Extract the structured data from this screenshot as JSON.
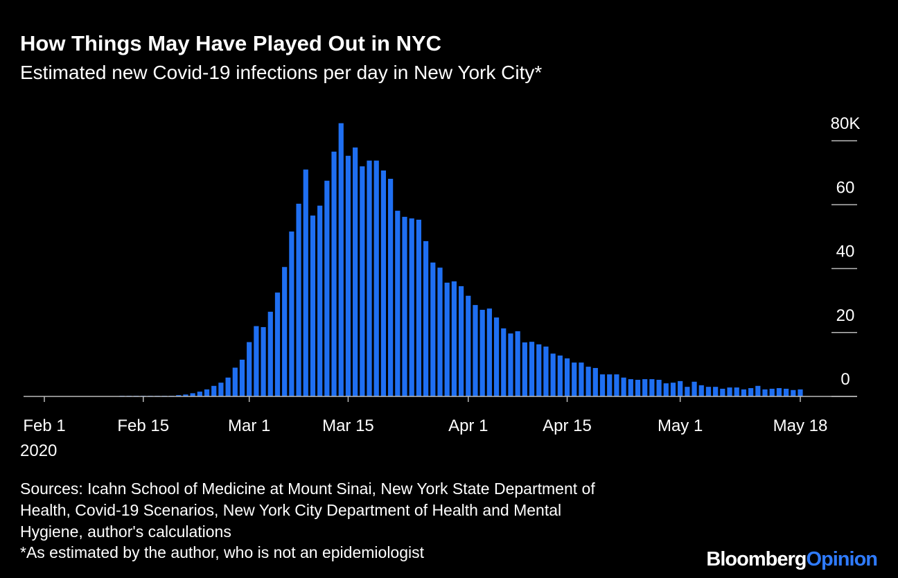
{
  "chart_data": {
    "type": "bar",
    "title": "How Things May Have Played Out in NYC",
    "subtitle": "Estimated new Covid-19 infections per day in New York City*",
    "categories": [
      "Feb 1",
      null,
      null,
      null,
      null,
      null,
      null,
      null,
      null,
      null,
      null,
      null,
      null,
      null,
      "Feb 15",
      null,
      null,
      null,
      null,
      null,
      null,
      null,
      null,
      null,
      null,
      null,
      null,
      null,
      null,
      "Mar 1",
      null,
      null,
      null,
      null,
      null,
      null,
      null,
      null,
      null,
      null,
      null,
      null,
      null,
      "Mar 15",
      null,
      null,
      null,
      null,
      null,
      null,
      null,
      null,
      null,
      null,
      null,
      null,
      null,
      null,
      null,
      null,
      "Apr 1",
      null,
      null,
      null,
      null,
      null,
      null,
      null,
      null,
      null,
      null,
      null,
      null,
      null,
      "Apr 15",
      null,
      null,
      null,
      null,
      null,
      null,
      null,
      null,
      null,
      null,
      null,
      null,
      null,
      null,
      null,
      "May 1",
      null,
      null,
      null,
      null,
      null,
      null,
      null,
      null,
      null,
      null,
      null,
      null,
      null,
      null,
      null,
      null,
      "May 18"
    ],
    "x_year_label": "2020",
    "values": [
      0.1,
      0.1,
      0.1,
      0.1,
      0.1,
      0.1,
      0.1,
      0.1,
      0.1,
      0.1,
      0.1,
      0.2,
      0.2,
      0.2,
      0.2,
      0.2,
      0.2,
      0.2,
      0.2,
      0.4,
      0.6,
      1,
      1.5,
      2.2,
      3.3,
      4.3,
      5.9,
      9,
      11.5,
      17,
      22,
      21.7,
      26.5,
      32.5,
      40.5,
      51.6,
      60.3,
      71,
      56.6,
      59.7,
      67.5,
      76.6,
      85.5,
      75.3,
      77.9,
      72,
      73.8,
      73.8,
      70.7,
      68.1,
      58.1,
      56.2,
      55.7,
      55.3,
      48.6,
      41.9,
      40.3,
      35.6,
      36,
      34.5,
      31.5,
      28.6,
      27.1,
      27.5,
      24.7,
      21.3,
      19.7,
      20.4,
      16.9,
      17.1,
      16.3,
      15.6,
      13.4,
      12.8,
      11.9,
      10.6,
      10.6,
      9.3,
      8.9,
      6.9,
      6.9,
      6.9,
      5.9,
      5.4,
      5.2,
      5.4,
      5.4,
      5.2,
      4.1,
      4.3,
      4.8,
      3,
      4.6,
      3.5,
      3,
      3,
      2.4,
      2.8,
      2.8,
      2.2,
      2.6,
      3.3,
      2.2,
      2.4,
      2.6,
      2.4,
      2,
      2.2
    ],
    "color": "#1f6ff2",
    "ylim": [
      0,
      90
    ],
    "yticks": [
      0,
      20,
      40,
      60,
      {
        "value": 80,
        "label": "80K"
      }
    ],
    "notes": [
      "Sources: Icahn School of Medicine at Mount Sinai, New York State Department of",
      "Health, Covid-19 Scenarios, New York City Department of Health and Mental",
      "Hygiene, author's calculations",
      "*As estimated by the author, who is not an epidemiologist"
    ],
    "brand": [
      "Bloomberg",
      "Opinion"
    ]
  }
}
